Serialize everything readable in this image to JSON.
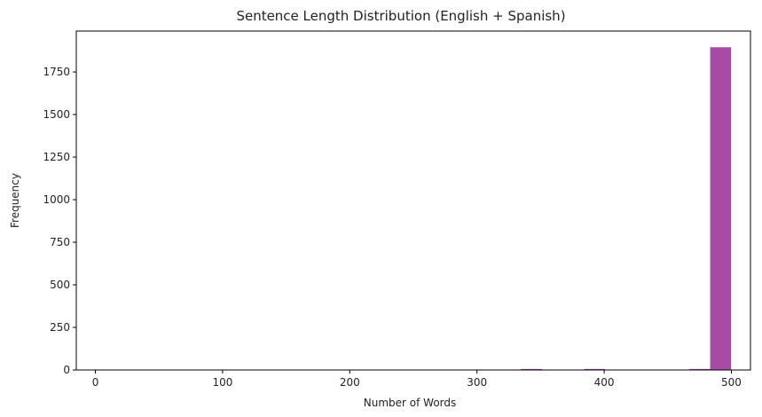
{
  "chart_data": {
    "type": "bar",
    "title": "Sentence Length Distribution (English + Spanish)",
    "xlabel": "Number of Words",
    "ylabel": "Frequency",
    "xlim": [
      -15,
      515
    ],
    "ylim": [
      0,
      1990
    ],
    "x_ticks": [
      0,
      100,
      200,
      300,
      400,
      500
    ],
    "y_ticks": [
      0,
      250,
      500,
      750,
      1000,
      1250,
      1500,
      1750
    ],
    "color": "#a64ca6",
    "bins": [
      {
        "x0": 4.3,
        "x1": 20.8,
        "value": 2
      },
      {
        "x0": 20.8,
        "x1": 37.3,
        "value": 2
      },
      {
        "x0": 103.4,
        "x1": 119.9,
        "value": 2
      },
      {
        "x0": 119.9,
        "x1": 136.4,
        "value": 2
      },
      {
        "x0": 136.4,
        "x1": 152.9,
        "value": 2
      },
      {
        "x0": 152.9,
        "x1": 169.5,
        "value": 2
      },
      {
        "x0": 169.5,
        "x1": 186.0,
        "value": 2
      },
      {
        "x0": 202.5,
        "x1": 219.0,
        "value": 2
      },
      {
        "x0": 235.5,
        "x1": 252.0,
        "value": 2
      },
      {
        "x0": 268.6,
        "x1": 285.1,
        "value": 2
      },
      {
        "x0": 285.1,
        "x1": 301.6,
        "value": 2
      },
      {
        "x0": 301.6,
        "x1": 318.1,
        "value": 2
      },
      {
        "x0": 318.1,
        "x1": 334.6,
        "value": 2
      },
      {
        "x0": 334.6,
        "x1": 351.2,
        "value": 6
      },
      {
        "x0": 351.2,
        "x1": 367.7,
        "value": 2
      },
      {
        "x0": 367.7,
        "x1": 384.2,
        "value": 2
      },
      {
        "x0": 384.2,
        "x1": 400.7,
        "value": 6
      },
      {
        "x0": 400.7,
        "x1": 417.2,
        "value": 2
      },
      {
        "x0": 417.2,
        "x1": 433.7,
        "value": 2
      },
      {
        "x0": 433.7,
        "x1": 450.2,
        "value": 2
      },
      {
        "x0": 450.2,
        "x1": 466.8,
        "value": 2
      },
      {
        "x0": 466.8,
        "x1": 483.3,
        "value": 6
      },
      {
        "x0": 483.3,
        "x1": 499.8,
        "value": 1895
      }
    ]
  }
}
